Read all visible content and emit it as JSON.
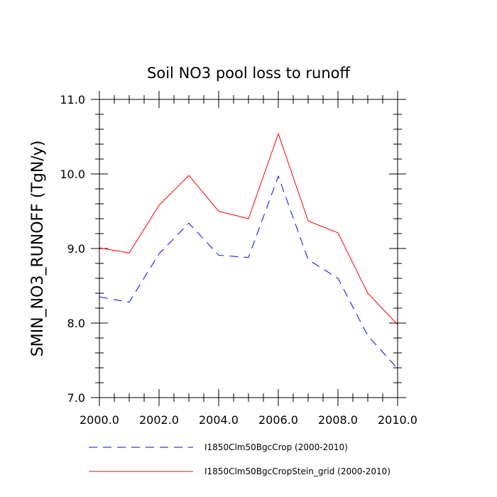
{
  "chart_data": {
    "type": "line",
    "title": "Soil NO3 pool loss to runoff",
    "xlabel": "",
    "ylabel": "SMIN_NO3_RUNOFF  (TgN/y)",
    "x": [
      2000,
      2001,
      2002,
      2003,
      2004,
      2005,
      2006,
      2007,
      2008,
      2009,
      2010
    ],
    "xlim": [
      2000,
      2010
    ],
    "ylim": [
      7.0,
      11.0
    ],
    "x_ticks": [
      "2000.0",
      "2002.0",
      "2004.0",
      "2006.0",
      "2008.0",
      "2010.0"
    ],
    "y_ticks": [
      "7.0",
      "8.0",
      "9.0",
      "10.0",
      "11.0"
    ],
    "grid": false,
    "legend_position": "bottom",
    "series": [
      {
        "name": "I1850Clm50BgcCrop (2000-2010)",
        "color": "#0000ff",
        "style": "dashed",
        "values": [
          8.35,
          8.28,
          8.93,
          9.34,
          8.91,
          8.88,
          9.97,
          8.85,
          8.6,
          7.83,
          7.39
        ]
      },
      {
        "name": "I1850Clm50BgcCropStein_grid (2000-2010)",
        "color": "#ff0000",
        "style": "solid",
        "values": [
          9.01,
          8.94,
          9.58,
          9.98,
          9.5,
          9.4,
          10.54,
          9.37,
          9.21,
          8.4,
          7.98
        ]
      }
    ]
  }
}
